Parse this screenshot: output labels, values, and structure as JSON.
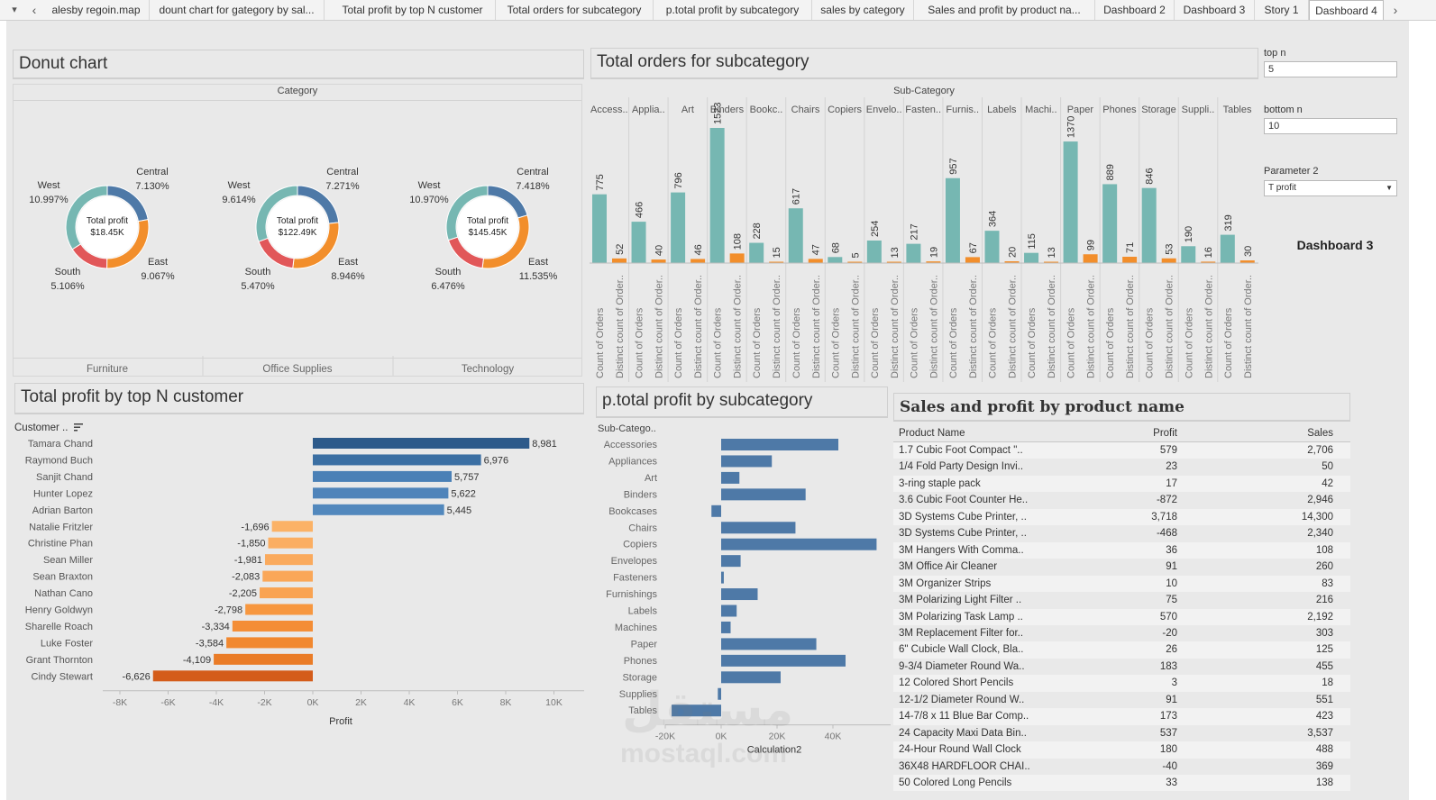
{
  "tabs": {
    "items": [
      {
        "label": "alesby regoin.map"
      },
      {
        "label": "dount chart for gategory by sal..."
      },
      {
        "label": "Total profit by top N customer"
      },
      {
        "label": "Total orders for subcategory"
      },
      {
        "label": "p.total profit by subcategory"
      },
      {
        "label": "sales by category"
      },
      {
        "label": "Sales and profit by product na..."
      },
      {
        "label": "Dashboard 2"
      },
      {
        "label": "Dashboard 3"
      },
      {
        "label": "Story 1"
      },
      {
        "label": "Dashboard 4"
      }
    ],
    "menu_glyph": "▾",
    "prev_glyph": "‹",
    "next_glyph": "›"
  },
  "donut": {
    "title": "Donut chart",
    "header": "Category",
    "charts": [
      {
        "category": "Furniture",
        "center_label": "Total profit",
        "center_value": "$18.45K",
        "segments": [
          {
            "region": "Central",
            "pct": "7.130%",
            "value": 7.13,
            "color": "#4e79a7"
          },
          {
            "region": "East",
            "pct": "9.067%",
            "value": 9.067,
            "color": "#f28e2b"
          },
          {
            "region": "South",
            "pct": "5.106%",
            "value": 5.106,
            "color": "#e15759"
          },
          {
            "region": "West",
            "pct": "10.997%",
            "value": 10.997,
            "color": "#76b7b2"
          }
        ]
      },
      {
        "category": "Office Supplies",
        "center_label": "Total profit",
        "center_value": "$122.49K",
        "segments": [
          {
            "region": "Central",
            "pct": "7.271%",
            "value": 7.271,
            "color": "#4e79a7"
          },
          {
            "region": "East",
            "pct": "8.946%",
            "value": 8.946,
            "color": "#f28e2b"
          },
          {
            "region": "South",
            "pct": "5.470%",
            "value": 5.47,
            "color": "#e15759"
          },
          {
            "region": "West",
            "pct": "9.614%",
            "value": 9.614,
            "color": "#76b7b2"
          }
        ]
      },
      {
        "category": "Technology",
        "center_label": "Total profit",
        "center_value": "$145.45K",
        "segments": [
          {
            "region": "Central",
            "pct": "7.418%",
            "value": 7.418,
            "color": "#4e79a7"
          },
          {
            "region": "East",
            "pct": "11.535%",
            "value": 11.535,
            "color": "#f28e2b"
          },
          {
            "region": "South",
            "pct": "6.476%",
            "value": 6.476,
            "color": "#e15759"
          },
          {
            "region": "West",
            "pct": "10.970%",
            "value": 10.97,
            "color": "#76b7b2"
          }
        ]
      }
    ]
  },
  "orders": {
    "title": "Total orders for subcategory",
    "header": "Sub-Category",
    "measure_labels": [
      "Count of Orders",
      "Distinct count of Order.."
    ],
    "colors": {
      "count": "#76b7b2",
      "distinct": "#f28e2b"
    },
    "subcategories": [
      {
        "label": "Access..",
        "count": 775,
        "distinct": 52
      },
      {
        "label": "Applia..",
        "count": 466,
        "distinct": 40
      },
      {
        "label": "Art",
        "count": 796,
        "distinct": 46
      },
      {
        "label": "Binders",
        "count": 1523,
        "distinct": 108
      },
      {
        "label": "Bookc..",
        "count": 228,
        "distinct": 15
      },
      {
        "label": "Chairs",
        "count": 617,
        "distinct": 47
      },
      {
        "label": "Copiers",
        "count": 68,
        "distinct": 5
      },
      {
        "label": "Envelo..",
        "count": 254,
        "distinct": 13
      },
      {
        "label": "Fasten..",
        "count": 217,
        "distinct": 19
      },
      {
        "label": "Furnis..",
        "count": 957,
        "distinct": 67
      },
      {
        "label": "Labels",
        "count": 364,
        "distinct": 20
      },
      {
        "label": "Machi..",
        "count": 115,
        "distinct": 13
      },
      {
        "label": "Paper",
        "count": 1370,
        "distinct": 99
      },
      {
        "label": "Phones",
        "count": 889,
        "distinct": 71
      },
      {
        "label": "Storage",
        "count": 846,
        "distinct": 53
      },
      {
        "label": "Suppli..",
        "count": 190,
        "distinct": 16
      },
      {
        "label": "Tables",
        "count": 319,
        "distinct": 30
      }
    ]
  },
  "params": {
    "top_n": {
      "label": "top n",
      "value": "5"
    },
    "bottom_n": {
      "label": "bottom n",
      "value": "10"
    },
    "param2": {
      "label": "Parameter 2",
      "value": "T profit"
    },
    "dashboard_label": "Dashboard 3"
  },
  "customers": {
    "title": "Total profit by top N customer",
    "header": "Customer ..",
    "sort_icon": "sort-icon",
    "axis_title": "Profit",
    "ticks": [
      "-8K",
      "-6K",
      "-4K",
      "-2K",
      "0K",
      "2K",
      "4K",
      "6K",
      "8K",
      "10K"
    ],
    "colors": {
      "top": "#2f5d8f",
      "bottom": "#f28e2b"
    },
    "rows": [
      {
        "name": "Tamara Chand",
        "value": 8981,
        "label": "8,981",
        "color": "#2d5a8a"
      },
      {
        "name": "Raymond Buch",
        "value": 6976,
        "label": "6,976",
        "color": "#3b6fa3"
      },
      {
        "name": "Sanjit Chand",
        "value": 5757,
        "label": "5,757",
        "color": "#4a80b6"
      },
      {
        "name": "Hunter Lopez",
        "value": 5622,
        "label": "5,622",
        "color": "#4f84ba"
      },
      {
        "name": "Adrian Barton",
        "value": 5445,
        "label": "5,445",
        "color": "#5288bd"
      },
      {
        "name": "Natalie Fritzler",
        "value": -1696,
        "label": "-1,696",
        "color": "#fbb266"
      },
      {
        "name": "Christine Phan",
        "value": -1850,
        "label": "-1,850",
        "color": "#fbae62"
      },
      {
        "name": "Sean Miller",
        "value": -1981,
        "label": "-1,981",
        "color": "#faaa5d"
      },
      {
        "name": "Sean Braxton",
        "value": -2083,
        "label": "-2,083",
        "color": "#faa758"
      },
      {
        "name": "Nathan Cano",
        "value": -2205,
        "label": "-2,205",
        "color": "#f9a352"
      },
      {
        "name": "Henry Goldwyn",
        "value": -2798,
        "label": "-2,798",
        "color": "#f7973f"
      },
      {
        "name": "Sharelle Roach",
        "value": -3334,
        "label": "-3,334",
        "color": "#f48d35"
      },
      {
        "name": "Luke Foster",
        "value": -3584,
        "label": "-3,584",
        "color": "#f1882f"
      },
      {
        "name": "Grant Thornton",
        "value": -4109,
        "label": "-4,109",
        "color": "#ea7c27"
      },
      {
        "name": "Cindy Stewart",
        "value": -6626,
        "label": "-6,626",
        "color": "#d45c1a"
      }
    ]
  },
  "subprofit": {
    "title": "p.total profit by subcategory",
    "header": "Sub-Catego..",
    "axis_title": "Calculation2",
    "ticks": [
      "-20K",
      "0K",
      "20K",
      "40K"
    ],
    "color": "#4e79a7",
    "rows": [
      {
        "label": "Accessories",
        "value": 41937
      },
      {
        "label": "Appliances",
        "value": 18138
      },
      {
        "label": "Art",
        "value": 6528
      },
      {
        "label": "Binders",
        "value": 30222
      },
      {
        "label": "Bookcases",
        "value": -3473
      },
      {
        "label": "Chairs",
        "value": 26590
      },
      {
        "label": "Copiers",
        "value": 55618
      },
      {
        "label": "Envelopes",
        "value": 6964
      },
      {
        "label": "Fasteners",
        "value": 950
      },
      {
        "label": "Furnishings",
        "value": 13059
      },
      {
        "label": "Labels",
        "value": 5546
      },
      {
        "label": "Machines",
        "value": 3385
      },
      {
        "label": "Paper",
        "value": 34054
      },
      {
        "label": "Phones",
        "value": 44516
      },
      {
        "label": "Storage",
        "value": 21279
      },
      {
        "label": "Supplies",
        "value": -1189
      },
      {
        "label": "Tables",
        "value": -17725
      }
    ]
  },
  "products": {
    "title": "Sales and profit by product name",
    "headers": {
      "name": "Product Name",
      "profit": "Profit",
      "sales": "Sales"
    },
    "rows": [
      {
        "name": "1.7 Cubic Foot Compact \"..",
        "profit": "579",
        "sales": "2,706"
      },
      {
        "name": "1/4 Fold Party Design Invi..",
        "profit": "23",
        "sales": "50"
      },
      {
        "name": "3-ring staple pack",
        "profit": "17",
        "sales": "42"
      },
      {
        "name": "3.6 Cubic Foot Counter He..",
        "profit": "-872",
        "sales": "2,946"
      },
      {
        "name": "3D Systems Cube Printer, ..",
        "profit": "3,718",
        "sales": "14,300"
      },
      {
        "name": "3D Systems Cube Printer, ..",
        "profit": "-468",
        "sales": "2,340"
      },
      {
        "name": "3M Hangers With Comma..",
        "profit": "36",
        "sales": "108"
      },
      {
        "name": "3M Office Air Cleaner",
        "profit": "91",
        "sales": "260"
      },
      {
        "name": "3M Organizer Strips",
        "profit": "10",
        "sales": "83"
      },
      {
        "name": "3M Polarizing Light Filter ..",
        "profit": "75",
        "sales": "216"
      },
      {
        "name": "3M Polarizing Task Lamp ..",
        "profit": "570",
        "sales": "2,192"
      },
      {
        "name": "3M Replacement Filter for..",
        "profit": "-20",
        "sales": "303"
      },
      {
        "name": "6\" Cubicle Wall Clock, Bla..",
        "profit": "26",
        "sales": "125"
      },
      {
        "name": "9-3/4 Diameter Round Wa..",
        "profit": "183",
        "sales": "455"
      },
      {
        "name": "12 Colored Short Pencils",
        "profit": "3",
        "sales": "18"
      },
      {
        "name": "12-1/2 Diameter Round W..",
        "profit": "91",
        "sales": "551"
      },
      {
        "name": "14-7/8 x 11 Blue Bar Comp..",
        "profit": "173",
        "sales": "423"
      },
      {
        "name": "24 Capacity Maxi Data Bin..",
        "profit": "537",
        "sales": "3,537"
      },
      {
        "name": "24-Hour Round Wall Clock",
        "profit": "180",
        "sales": "488"
      },
      {
        "name": "36X48 HARDFLOOR CHAI..",
        "profit": "-40",
        "sales": "369"
      },
      {
        "name": "50 Colored Long Pencils",
        "profit": "33",
        "sales": "138"
      }
    ]
  },
  "watermark": {
    "arabic": "مستقل",
    "latin": "mostaql.com"
  }
}
